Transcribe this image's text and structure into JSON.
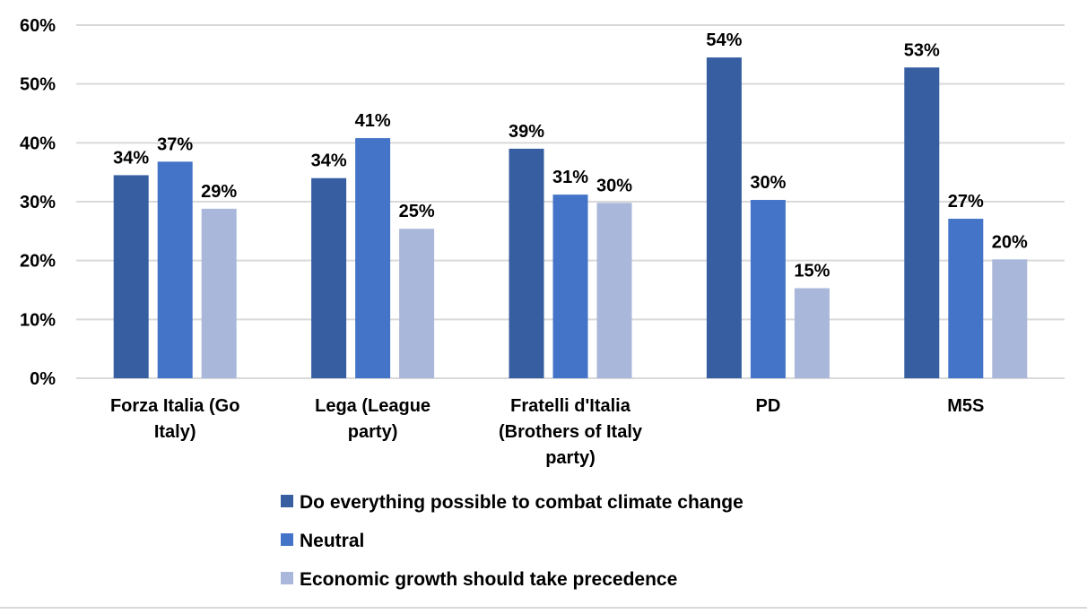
{
  "chart_data": {
    "type": "bar",
    "categories": [
      [
        "Forza Italia (Go",
        "Italy)"
      ],
      [
        "Lega (League",
        "party)"
      ],
      [
        "Fratelli d'Italia",
        "(Brothers of Italy",
        "party)"
      ],
      [
        "PD"
      ],
      [
        "M5S"
      ]
    ],
    "series": [
      {
        "name": "Do everything possible to combat climate change",
        "color": "#365ea1",
        "values": [
          34.5,
          34,
          39,
          54.5,
          52.8
        ],
        "labels": [
          "34%",
          "34%",
          "39%",
          "54%",
          "53%"
        ]
      },
      {
        "name": "Neutral",
        "color": "#4474c8",
        "values": [
          36.8,
          40.8,
          31.2,
          30.3,
          27.1
        ],
        "labels": [
          "37%",
          "41%",
          "31%",
          "30%",
          "27%"
        ]
      },
      {
        "name": "Economic growth should take precedence",
        "color": "#a9b7da",
        "values": [
          28.8,
          25.4,
          29.8,
          15.3,
          20.2
        ],
        "labels": [
          "29%",
          "25%",
          "30%",
          "15%",
          "20%"
        ]
      }
    ],
    "ylim": [
      0,
      60
    ],
    "yticks": [
      0,
      10,
      20,
      30,
      40,
      50,
      60
    ],
    "ytick_labels": [
      "0%",
      "10%",
      "20%",
      "30%",
      "40%",
      "50%",
      "60%"
    ],
    "grid": true,
    "legend_position": "bottom",
    "title": "",
    "xlabel": "",
    "ylabel": ""
  }
}
